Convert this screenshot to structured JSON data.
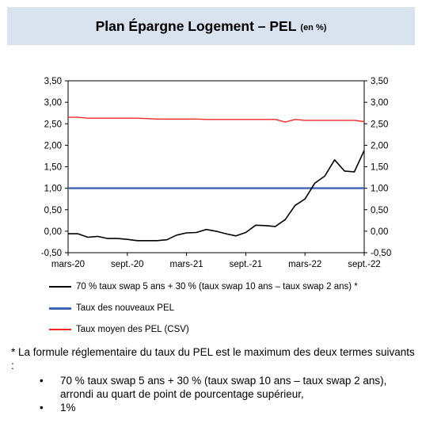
{
  "header": {
    "title": "Plan Épargne Logement – PEL",
    "subtitle": "(en %)"
  },
  "chart_data": {
    "type": "line",
    "y_ticks": [
      "3,50",
      "3,00",
      "2,50",
      "2,00",
      "1,50",
      "1,00",
      "0,50",
      "0,00",
      "-0,50"
    ],
    "ylim": [
      -0.5,
      3.5
    ],
    "x_ticks": [
      "mars-20",
      "sept.-20",
      "mars-21",
      "sept.-21",
      "mars-22",
      "sept.-22"
    ],
    "x": [
      "2020-03",
      "2020-04",
      "2020-05",
      "2020-06",
      "2020-07",
      "2020-08",
      "2020-09",
      "2020-10",
      "2020-11",
      "2020-12",
      "2021-01",
      "2021-02",
      "2021-03",
      "2021-04",
      "2021-05",
      "2021-06",
      "2021-07",
      "2021-08",
      "2021-09",
      "2021-10",
      "2021-11",
      "2021-12",
      "2022-01",
      "2022-02",
      "2022-03",
      "2022-04",
      "2022-05",
      "2022-06",
      "2022-07",
      "2022-08",
      "2022-09"
    ],
    "grid": false,
    "legend_placement": "bottom",
    "series": [
      {
        "name": "70 % taux swap 5 ans + 30 % (taux swap 10 ans – taux swap 2 ans) *",
        "color": "#000000",
        "values": [
          -0.06,
          -0.06,
          -0.14,
          -0.12,
          -0.17,
          -0.17,
          -0.19,
          -0.22,
          -0.22,
          -0.22,
          -0.2,
          -0.09,
          -0.04,
          -0.03,
          0.04,
          0.0,
          -0.06,
          -0.11,
          -0.03,
          0.14,
          0.13,
          0.11,
          0.27,
          0.6,
          0.75,
          1.12,
          1.28,
          1.66,
          1.4,
          1.38,
          1.88
        ]
      },
      {
        "name": "Taux des nouveaux PEL",
        "color": "#3a66b3",
        "values": [
          1.0,
          1.0,
          1.0,
          1.0,
          1.0,
          1.0,
          1.0,
          1.0,
          1.0,
          1.0,
          1.0,
          1.0,
          1.0,
          1.0,
          1.0,
          1.0,
          1.0,
          1.0,
          1.0,
          1.0,
          1.0,
          1.0,
          1.0,
          1.0,
          1.0,
          1.0,
          1.0,
          1.0,
          1.0,
          1.0,
          1.0
        ]
      },
      {
        "name": "Taux moyen des PEL (CSV)",
        "color": "#ee2a2a",
        "values": [
          2.65,
          2.65,
          2.63,
          2.63,
          2.63,
          2.63,
          2.63,
          2.63,
          2.62,
          2.61,
          2.61,
          2.61,
          2.61,
          2.61,
          2.6,
          2.6,
          2.6,
          2.6,
          2.6,
          2.6,
          2.6,
          2.6,
          2.54,
          2.6,
          2.58,
          2.58,
          2.58,
          2.58,
          2.58,
          2.58,
          2.55
        ]
      }
    ]
  },
  "footnote": {
    "intro": "* La formule réglementaire du taux du PEL est le maximum des deux termes suivants :",
    "items": [
      "70 % taux swap 5 ans + 30 % (taux swap 10 ans – taux swap 2 ans), arrondi au quart de point de pourcentage supérieur,",
      "1%"
    ]
  }
}
